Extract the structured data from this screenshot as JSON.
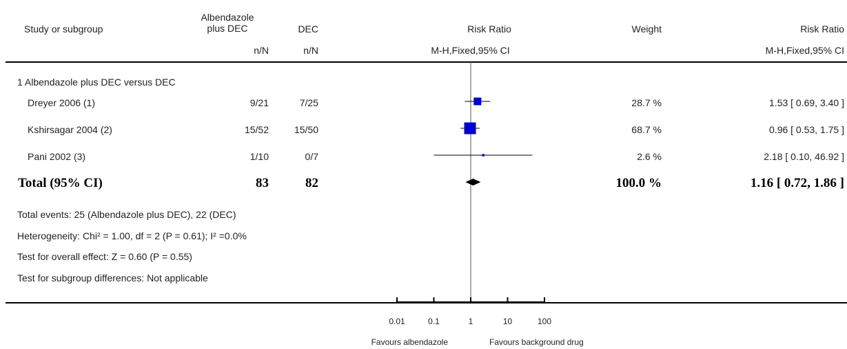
{
  "headers": {
    "study": "Study or subgroup",
    "arm1_line1": "Albendazole",
    "arm1_line2": "plus DEC",
    "arm2": "DEC",
    "rr_col": "Risk Ratio",
    "weight": "Weight",
    "rr_col2": "Risk Ratio",
    "nN1": "n/N",
    "nN2": "n/N",
    "method": "M-H,Fixed,95% CI",
    "method2": "M-H,Fixed,95% CI"
  },
  "subgroup_title": "1 Albendazole plus DEC versus DEC",
  "studies": [
    {
      "name": "Dreyer 2006 (1)",
      "arm1": "9/21",
      "arm2": "7/25",
      "weight": "28.7 %",
      "ci_text": "1.53 [ 0.69, 3.40 ]"
    },
    {
      "name": "Kshirsagar 2004 (2)",
      "arm1": "15/52",
      "arm2": "15/50",
      "weight": "68.7 %",
      "ci_text": "0.96 [ 0.53, 1.75 ]"
    },
    {
      "name": "Pani 2002 (3)",
      "arm1": "1/10",
      "arm2": "0/7",
      "weight": "2.6 %",
      "ci_text": "2.18 [ 0.10, 46.92 ]"
    }
  ],
  "total": {
    "label": "Total (95% CI)",
    "arm1": "83",
    "arm2": "82",
    "weight": "100.0 %",
    "ci_text": "1.16 [ 0.72, 1.86 ]"
  },
  "footnotes": {
    "events": "Total events: 25 (Albendazole plus DEC), 22 (DEC)",
    "heterogeneity": "Heterogeneity: Chi² = 1.00, df = 2 (P = 0.61); I² =0.0%",
    "overall": "Test for overall effect: Z = 0.60 (P = 0.55)",
    "subgroup": "Test for subgroup differences: Not applicable"
  },
  "axis": {
    "favours_left": "Favours albendazole",
    "favours_right": "Favours background drug"
  },
  "chart_data": {
    "type": "forest",
    "scale": "log",
    "xlim": [
      0.01,
      100
    ],
    "ticks": [
      0.01,
      0.1,
      1,
      10,
      100
    ],
    "tick_labels": [
      "0.01",
      "0.1",
      "1",
      "10",
      "100"
    ],
    "null_value": 1,
    "studies": [
      {
        "name": "Dreyer 2006 (1)",
        "rr": 1.53,
        "lo": 0.69,
        "hi": 3.4,
        "weight": 28.7
      },
      {
        "name": "Kshirsagar 2004 (2)",
        "rr": 0.96,
        "lo": 0.53,
        "hi": 1.75,
        "weight": 68.7
      },
      {
        "name": "Pani 2002 (3)",
        "rr": 2.18,
        "lo": 0.1,
        "hi": 46.92,
        "weight": 2.6
      }
    ],
    "pooled": {
      "rr": 1.16,
      "lo": 0.72,
      "hi": 1.86
    },
    "marker_color": "#0000cc"
  }
}
